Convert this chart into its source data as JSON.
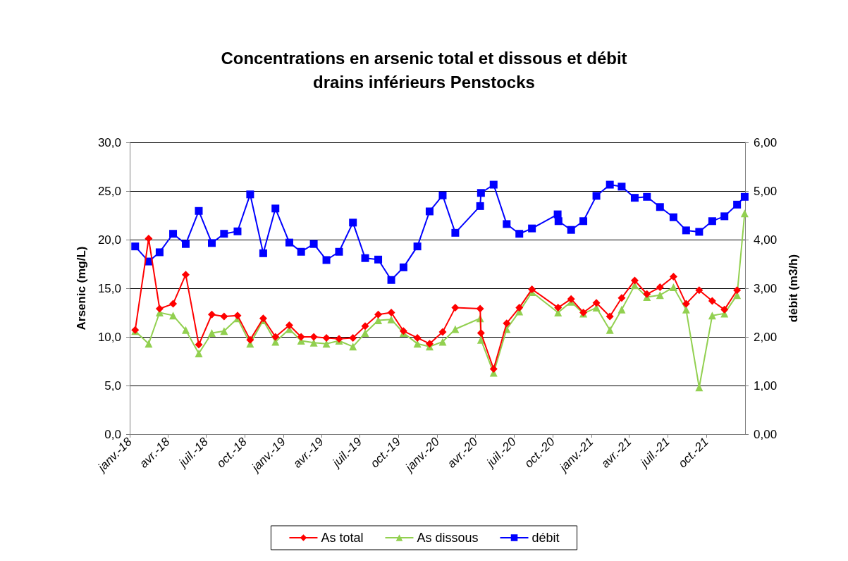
{
  "chart_data": {
    "type": "line",
    "title": "Concentrations en arsenic total et dissous et débit\ndrains inférieurs Penstocks",
    "ylabel": "Arsenic (mg/L)",
    "y2label": "débit (m3/h)",
    "xlim": [
      "2018-01-01",
      "2022-01-01"
    ],
    "xticks": [
      {
        "value": "2018-01-01",
        "label": "janv.-18"
      },
      {
        "value": "2018-04-01",
        "label": "avr.-18"
      },
      {
        "value": "2018-07-01",
        "label": "juil.-18"
      },
      {
        "value": "2018-10-01",
        "label": "oct.-18"
      },
      {
        "value": "2019-01-01",
        "label": "janv.-19"
      },
      {
        "value": "2019-04-01",
        "label": "avr.-19"
      },
      {
        "value": "2019-07-01",
        "label": "juil.-19"
      },
      {
        "value": "2019-10-01",
        "label": "oct.-19"
      },
      {
        "value": "2020-01-01",
        "label": "janv.-20"
      },
      {
        "value": "2020-04-01",
        "label": "avr.-20"
      },
      {
        "value": "2020-07-01",
        "label": "juil.-20"
      },
      {
        "value": "2020-10-01",
        "label": "oct.-20"
      },
      {
        "value": "2021-01-01",
        "label": "janv.-21"
      },
      {
        "value": "2021-04-01",
        "label": "avr.-21"
      },
      {
        "value": "2021-07-01",
        "label": "juil.-21"
      },
      {
        "value": "2021-10-01",
        "label": "oct.-21"
      }
    ],
    "ylim": [
      0,
      30
    ],
    "yticks": [
      {
        "value": 0,
        "label": "0,0"
      },
      {
        "value": 5,
        "label": "5,0"
      },
      {
        "value": 10,
        "label": "10,0"
      },
      {
        "value": 15,
        "label": "15,0"
      },
      {
        "value": 20,
        "label": "20,0"
      },
      {
        "value": 25,
        "label": "25,0"
      },
      {
        "value": 30,
        "label": "30,0"
      }
    ],
    "y2lim": [
      0,
      6
    ],
    "y2ticks": [
      {
        "value": 0,
        "label": "0,00"
      },
      {
        "value": 1,
        "label": "1,00"
      },
      {
        "value": 2,
        "label": "2,00"
      },
      {
        "value": 3,
        "label": "3,00"
      },
      {
        "value": 4,
        "label": "4,00"
      },
      {
        "value": 5,
        "label": "5,00"
      },
      {
        "value": 6,
        "label": "6,00"
      }
    ],
    "grid": "y",
    "legend": "bottom",
    "line_style": "solid",
    "series": [
      {
        "name": "As total",
        "color": "#ff0000",
        "marker": "diamond",
        "x": [
          "2018-01-14",
          "2018-02-15",
          "2018-03-13",
          "2018-04-14",
          "2018-05-14",
          "2018-06-14",
          "2018-07-15",
          "2018-08-13",
          "2018-09-14",
          "2018-10-14",
          "2018-11-14",
          "2018-12-13",
          "2019-01-15",
          "2019-02-12",
          "2019-03-14",
          "2019-04-13",
          "2019-05-13",
          "2019-06-15",
          "2019-07-14",
          "2019-08-14",
          "2019-09-14",
          "2019-10-13",
          "2019-11-15",
          "2019-12-14",
          "2020-01-14",
          "2020-02-13",
          "2020-04-12",
          "2020-04-14",
          "2020-05-14",
          "2020-06-14",
          "2020-07-14",
          "2020-08-13",
          "2020-10-14",
          "2020-11-14",
          "2020-12-13",
          "2021-01-13",
          "2021-02-14",
          "2021-03-14",
          "2021-04-14",
          "2021-05-13",
          "2021-06-13",
          "2021-07-15",
          "2021-08-14",
          "2021-09-14",
          "2021-10-15",
          "2021-11-13",
          "2021-12-13"
        ],
        "values": [
          10.7,
          20.1,
          12.9,
          13.4,
          16.4,
          9.2,
          12.3,
          12.1,
          12.2,
          9.7,
          11.9,
          10.0,
          11.2,
          10.0,
          10.0,
          9.9,
          9.8,
          9.9,
          11.1,
          12.3,
          12.5,
          10.6,
          9.9,
          9.3,
          10.5,
          13.0,
          12.9,
          10.4,
          6.7,
          11.4,
          13.0,
          14.9,
          13.0,
          13.9,
          12.5,
          13.5,
          12.1,
          14.0,
          15.8,
          14.4,
          15.1,
          16.2,
          13.4,
          14.8,
          13.7,
          12.8,
          14.8
        ]
      },
      {
        "name": "As dissous",
        "color": "#92d050",
        "marker": "triangle",
        "x": [
          "2018-01-14",
          "2018-02-15",
          "2018-03-13",
          "2018-04-14",
          "2018-05-14",
          "2018-06-14",
          "2018-07-15",
          "2018-08-13",
          "2018-09-14",
          "2018-10-14",
          "2018-11-14",
          "2018-12-13",
          "2019-01-15",
          "2019-02-12",
          "2019-03-14",
          "2019-04-13",
          "2019-05-13",
          "2019-06-15",
          "2019-07-14",
          "2019-08-14",
          "2019-09-14",
          "2019-10-13",
          "2019-11-15",
          "2019-12-14",
          "2020-01-14",
          "2020-02-13",
          "2020-04-12",
          "2020-04-14",
          "2020-05-14",
          "2020-06-14",
          "2020-07-14",
          "2020-08-13",
          "2020-10-14",
          "2020-11-14",
          "2020-12-13",
          "2021-01-13",
          "2021-02-14",
          "2021-03-14",
          "2021-04-14",
          "2021-05-13",
          "2021-06-13",
          "2021-07-15",
          "2021-08-14",
          "2021-09-14",
          "2021-10-15",
          "2021-11-13",
          "2021-12-13",
          "2021-12-31"
        ],
        "values": [
          10.6,
          9.3,
          12.5,
          12.2,
          10.7,
          8.3,
          10.4,
          10.6,
          11.9,
          9.3,
          11.7,
          9.5,
          10.8,
          9.6,
          9.4,
          9.3,
          9.6,
          9.0,
          10.4,
          11.7,
          11.8,
          10.4,
          9.3,
          9.0,
          9.5,
          10.8,
          11.9,
          9.7,
          6.3,
          10.8,
          12.6,
          14.6,
          12.5,
          13.6,
          12.4,
          13.0,
          10.7,
          12.8,
          15.3,
          14.1,
          14.3,
          15.1,
          12.8,
          4.8,
          12.2,
          12.4,
          14.3,
          22.7
        ]
      },
      {
        "name": "débit",
        "color": "#0000ff",
        "marker": "square",
        "axis": "y2",
        "x": [
          "2018-01-14",
          "2018-02-15",
          "2018-03-13",
          "2018-04-14",
          "2018-05-14",
          "2018-06-14",
          "2018-07-15",
          "2018-08-13",
          "2018-09-14",
          "2018-10-14",
          "2018-11-14",
          "2018-12-13",
          "2019-01-15",
          "2019-02-12",
          "2019-03-14",
          "2019-04-13",
          "2019-05-13",
          "2019-06-15",
          "2019-07-14",
          "2019-08-14",
          "2019-09-14",
          "2019-10-13",
          "2019-11-15",
          "2019-12-14",
          "2020-01-14",
          "2020-02-13",
          "2020-04-12",
          "2020-04-14",
          "2020-05-14",
          "2020-06-14",
          "2020-07-14",
          "2020-08-13",
          "2020-10-13",
          "2020-10-15",
          "2020-11-14",
          "2020-12-13",
          "2021-01-13",
          "2021-02-14",
          "2021-03-14",
          "2021-04-14",
          "2021-05-13",
          "2021-06-13",
          "2021-07-15",
          "2021-08-14",
          "2021-09-14",
          "2021-10-15",
          "2021-11-13",
          "2021-12-13",
          "2021-12-31"
        ],
        "values": [
          3.86,
          3.55,
          3.74,
          4.12,
          3.91,
          4.59,
          3.93,
          4.12,
          4.17,
          4.93,
          3.72,
          4.64,
          3.94,
          3.75,
          3.91,
          3.58,
          3.75,
          4.35,
          3.62,
          3.59,
          3.17,
          3.43,
          3.86,
          4.58,
          4.91,
          4.14,
          4.69,
          4.96,
          5.13,
          4.32,
          4.12,
          4.23,
          4.52,
          4.38,
          4.2,
          4.38,
          4.9,
          5.13,
          5.09,
          4.86,
          4.88,
          4.67,
          4.46,
          4.19,
          4.16,
          4.38,
          4.48,
          4.72,
          4.88
        ]
      }
    ]
  }
}
